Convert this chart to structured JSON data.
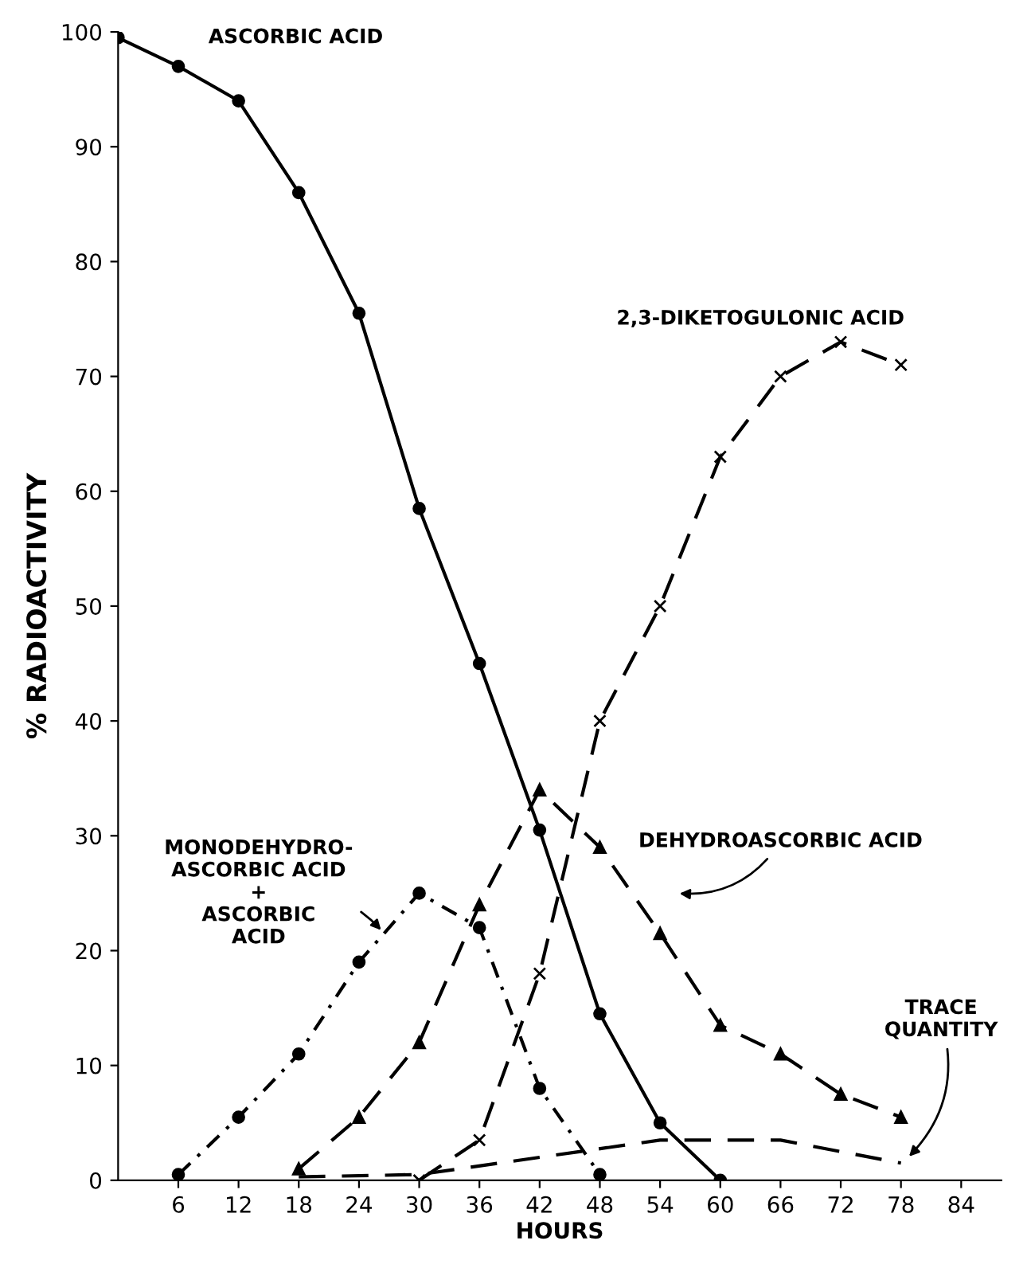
{
  "chart_data": {
    "type": "line",
    "xlabel": "HOURS",
    "ylabel": "% RADIOACTIVITY",
    "xlim": [
      0,
      88
    ],
    "ylim": [
      0,
      100
    ],
    "xticks": [
      6,
      12,
      18,
      24,
      30,
      36,
      42,
      48,
      54,
      60,
      66,
      72,
      78,
      84
    ],
    "yticks": [
      0,
      10,
      20,
      30,
      40,
      50,
      60,
      70,
      80,
      90,
      100
    ],
    "grid": false,
    "legend": false,
    "series": [
      {
        "name": "ASCORBIC ACID",
        "color": "#000000",
        "marker": "circle",
        "line_style": "solid",
        "x": [
          0,
          6,
          12,
          18,
          24,
          30,
          36,
          42,
          48,
          54,
          60
        ],
        "values": [
          99.5,
          97,
          94,
          86,
          75.5,
          58.5,
          45,
          30.5,
          14.5,
          5,
          0
        ]
      },
      {
        "name": "MONODEHYDRO-\nASCORBIC ACID\n+\nASCORBIC\nACID",
        "color": "#000000",
        "marker": "circle",
        "line_style": "dotted",
        "x": [
          6,
          12,
          18,
          24,
          30,
          36,
          42,
          48
        ],
        "values": [
          0.5,
          5.5,
          11,
          19,
          25,
          22,
          8,
          0.5
        ]
      },
      {
        "name": "DEHYDROASCORBIC ACID",
        "color": "#000000",
        "marker": "triangle",
        "line_style": "dashed",
        "x": [
          18,
          24,
          30,
          36,
          42,
          48,
          54,
          60,
          66,
          72,
          78
        ],
        "values": [
          1,
          5.5,
          12,
          24,
          34,
          29,
          21.5,
          13.5,
          11,
          7.5,
          5.5
        ]
      },
      {
        "name": "2,3-DIKETOGULONIC ACID",
        "color": "#000000",
        "marker": "cross",
        "line_style": "dashed",
        "x": [
          30,
          36,
          42,
          48,
          54,
          60,
          66,
          72,
          78
        ],
        "values": [
          0,
          3.5,
          18,
          40,
          50,
          63,
          70,
          73,
          71
        ]
      },
      {
        "name": "TRACE\nQUANTITY",
        "color": "#000000",
        "marker": "none",
        "line_style": "dashed",
        "x": [
          18,
          30,
          42,
          54,
          66,
          78
        ],
        "values": [
          0.3,
          0.5,
          2,
          3.5,
          3.5,
          1.5
        ]
      }
    ]
  }
}
